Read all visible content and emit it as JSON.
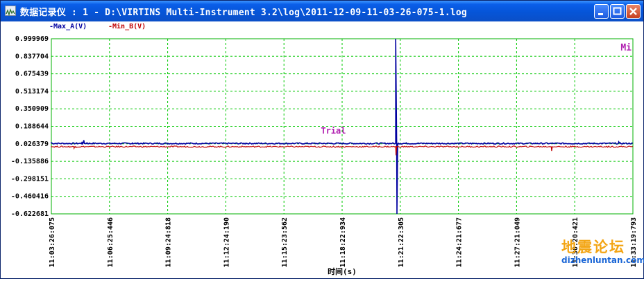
{
  "window": {
    "title": "数据记录仪 : 1 - D:\\VIRTINS Multi-Instrument 3.2\\log\\2011-12-09-11-03-26-075-1.log",
    "buttons": [
      "minimize-icon",
      "maximize-icon",
      "close-icon"
    ]
  },
  "chart_data": {
    "type": "line",
    "xlabel": "时间(s)",
    "ylabel": "",
    "x_ticks": [
      "11:03:26:075",
      "11:06:25:446",
      "11:09:24:818",
      "11:12:24:190",
      "11:15:23:562",
      "11:18:22:934",
      "11:21:22:305",
      "11:24:21:677",
      "11:27:21:049",
      "11:30:20:421",
      "11:33:19:793"
    ],
    "y_ticks": [
      "0.999969",
      "0.837704",
      "0.675439",
      "0.513174",
      "0.350909",
      "0.188644",
      "0.026379",
      "-0.135886",
      "-0.298151",
      "-0.460416",
      "-0.622681"
    ],
    "ylim": [
      -0.622681,
      0.999969
    ],
    "xlim_seconds": [
      0,
      1793.718
    ],
    "grid": true,
    "legend_position": "top-left",
    "annotation": "Trial",
    "corner_icon": "Mi",
    "series": [
      {
        "name": "Max_A(V)",
        "color": "#0000a0",
        "baseline": 0.03,
        "points": [
          [
            0,
            0.036
          ],
          [
            95,
            0.045
          ],
          [
            100,
            0.06
          ],
          [
            110,
            0.036
          ],
          [
            250,
            0.034
          ],
          [
            600,
            0.032
          ],
          [
            1055,
            0.033
          ],
          [
            1062,
            0.999969
          ],
          [
            1066,
            -0.622681
          ],
          [
            1070,
            0.032
          ],
          [
            1500,
            0.031
          ],
          [
            1750,
            0.045
          ],
          [
            1755,
            0.031
          ],
          [
            1793,
            0.031
          ]
        ]
      },
      {
        "name": "Min_B(V)",
        "color": "#c00000",
        "baseline": 0.0,
        "points": [
          [
            0,
            0.0
          ],
          [
            70,
            -0.015
          ],
          [
            75,
            0.0
          ],
          [
            1058,
            0.0
          ],
          [
            1063,
            -0.08
          ],
          [
            1068,
            0.0
          ],
          [
            1540,
            0.0
          ],
          [
            1543,
            -0.04
          ],
          [
            1546,
            0.0
          ],
          [
            1793,
            0.0
          ]
        ]
      }
    ]
  },
  "colors": {
    "grid": "#00c800",
    "plot_border": "#00b000",
    "annotation": "#b020b0",
    "titlebar": "#0655d8"
  },
  "watermark": {
    "cn": "地震论坛",
    "url": "dizhenluntan.com"
  }
}
